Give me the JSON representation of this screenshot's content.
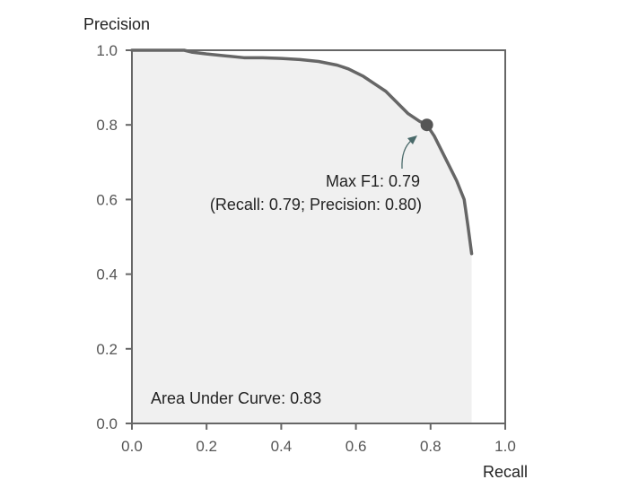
{
  "chart_data": {
    "type": "area",
    "title": "",
    "xlabel": "Recall",
    "ylabel": "Precision",
    "xlim": [
      0.0,
      1.0
    ],
    "ylim": [
      0.0,
      1.0
    ],
    "xticks": [
      "0.0",
      "0.2",
      "0.4",
      "0.6",
      "0.8",
      "1.0"
    ],
    "yticks": [
      "0.0",
      "0.2",
      "0.4",
      "0.6",
      "0.8",
      "1.0"
    ],
    "grid": false,
    "series": [
      {
        "x": [
          0.0,
          0.05,
          0.1,
          0.14,
          0.16,
          0.2,
          0.25,
          0.3,
          0.35,
          0.4,
          0.45,
          0.5,
          0.55,
          0.58,
          0.62,
          0.65,
          0.68,
          0.71,
          0.74,
          0.77,
          0.79,
          0.81,
          0.83,
          0.85,
          0.87,
          0.89,
          0.9,
          0.91
        ],
        "y": [
          1.0,
          1.0,
          1.0,
          1.0,
          0.995,
          0.99,
          0.985,
          0.98,
          0.98,
          0.978,
          0.975,
          0.97,
          0.96,
          0.95,
          0.93,
          0.91,
          0.89,
          0.86,
          0.83,
          0.81,
          0.8,
          0.77,
          0.73,
          0.69,
          0.65,
          0.6,
          0.53,
          0.455
        ]
      }
    ],
    "marker": {
      "x": 0.79,
      "y": 0.8
    },
    "annotations": {
      "max_f1": "Max F1: 0.79",
      "max_f1_detail": "(Recall: 0.79; Precision: 0.80)",
      "auc": "Area Under Curve: 0.83"
    },
    "colors": {
      "line": "#666666",
      "fill": "#f0f0f0",
      "axis": "#666666",
      "marker": "#555555",
      "arrow": "#4a6a6a"
    }
  }
}
